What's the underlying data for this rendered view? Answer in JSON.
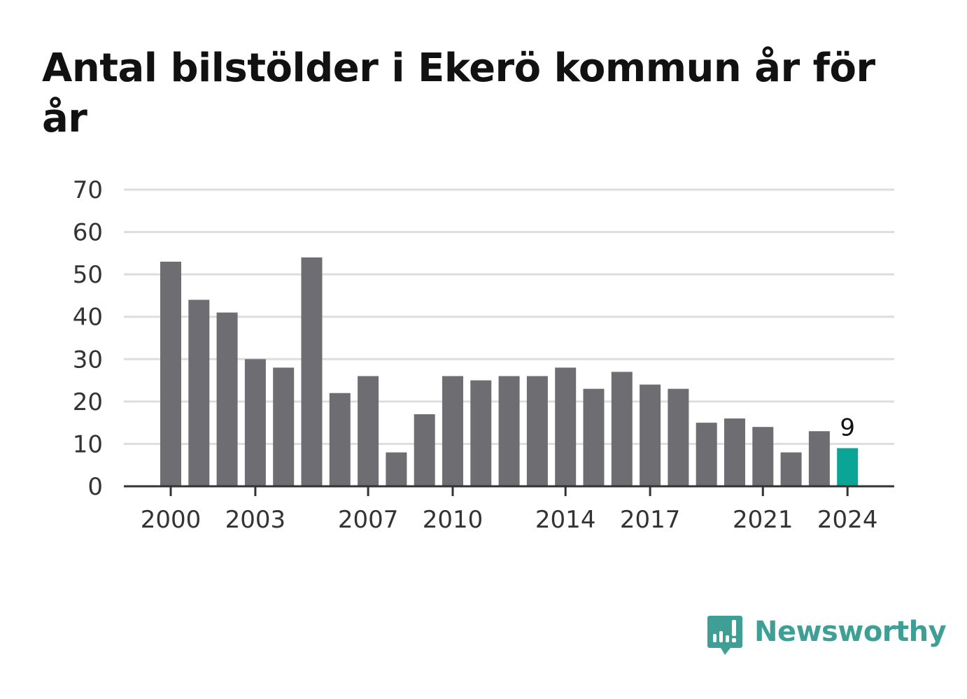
{
  "chart_data": {
    "type": "bar",
    "title": "Antal bilstölder i Ekerö kommun år för år",
    "xlabel": "",
    "ylabel": "",
    "categories": [
      "2000",
      "2001",
      "2002",
      "2003",
      "2004",
      "2005",
      "2006",
      "2007",
      "2008",
      "2009",
      "2010",
      "2011",
      "2012",
      "2013",
      "2014",
      "2015",
      "2016",
      "2017",
      "2018",
      "2019",
      "2020",
      "2021",
      "2022",
      "2023",
      "2024"
    ],
    "values": [
      53,
      44,
      41,
      30,
      28,
      54,
      22,
      26,
      8,
      17,
      26,
      25,
      26,
      26,
      28,
      23,
      27,
      24,
      23,
      15,
      16,
      14,
      8,
      13,
      9
    ],
    "ylim": [
      0,
      70
    ],
    "yticks": [
      0,
      10,
      20,
      30,
      40,
      50,
      60,
      70
    ],
    "xtick_labels": [
      "2000",
      "2003",
      "2007",
      "2010",
      "2014",
      "2017",
      "2021",
      "2024"
    ],
    "grid": true,
    "bar_color": "#6e6d72",
    "highlight_color": "#0aa596",
    "highlight_category": "2024",
    "highlight_label": "9",
    "gridline_color": "#dddddd",
    "axis_color": "#333333"
  },
  "brand": {
    "name": "Newsworthy",
    "icon": "newsworthy-logo-icon",
    "color": "#3f9f96"
  }
}
